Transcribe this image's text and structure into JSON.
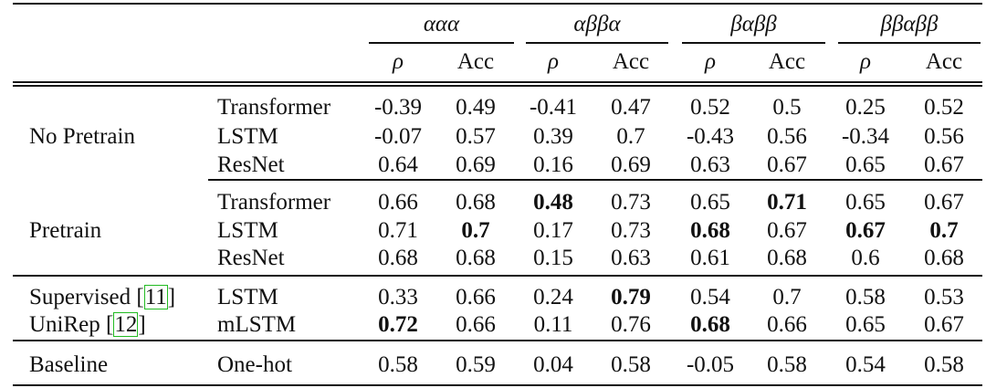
{
  "groups": [
    {
      "label": "ααα"
    },
    {
      "label": "αββα"
    },
    {
      "label": "βαββ"
    },
    {
      "label": "ββαββ"
    }
  ],
  "subheaders": [
    "ρ",
    "Acc"
  ],
  "sections": [
    {
      "name": "No Pretrain",
      "rows": [
        {
          "model": "Transformer",
          "values": [
            "-0.39",
            "0.49",
            "-0.41",
            "0.47",
            "0.52",
            "0.5",
            "0.25",
            "0.52"
          ],
          "bold": []
        },
        {
          "model": "LSTM",
          "values": [
            "-0.07",
            "0.57",
            "0.39",
            "0.7",
            "-0.43",
            "0.56",
            "-0.34",
            "0.56"
          ],
          "bold": []
        },
        {
          "model": "ResNet",
          "values": [
            "0.64",
            "0.69",
            "0.16",
            "0.69",
            "0.63",
            "0.67",
            "0.65",
            "0.67"
          ],
          "bold": []
        }
      ]
    },
    {
      "name": "Pretrain",
      "rows": [
        {
          "model": "Transformer",
          "values": [
            "0.66",
            "0.68",
            "0.48",
            "0.73",
            "0.65",
            "0.71",
            "0.65",
            "0.67"
          ],
          "bold": [
            2,
            5
          ]
        },
        {
          "model": "LSTM",
          "values": [
            "0.71",
            "0.7",
            "0.17",
            "0.73",
            "0.68",
            "0.67",
            "0.67",
            "0.7"
          ],
          "bold": [
            1,
            4,
            6,
            7
          ]
        },
        {
          "model": "ResNet",
          "values": [
            "0.68",
            "0.68",
            "0.15",
            "0.63",
            "0.61",
            "0.68",
            "0.6",
            "0.68"
          ],
          "bold": []
        }
      ]
    },
    {
      "name": "",
      "rows": [
        {
          "label": "Supervised",
          "ref": "11",
          "model": "LSTM",
          "values": [
            "0.33",
            "0.66",
            "0.24",
            "0.79",
            "0.54",
            "0.7",
            "0.58",
            "0.53"
          ],
          "bold": [
            3
          ]
        },
        {
          "label": "UniRep",
          "ref": "12",
          "model": "mLSTM",
          "values": [
            "0.72",
            "0.66",
            "0.11",
            "0.76",
            "0.68",
            "0.66",
            "0.65",
            "0.67"
          ],
          "bold": [
            0,
            4
          ]
        }
      ]
    },
    {
      "name": "Baseline",
      "rows": [
        {
          "model": "One-hot",
          "values": [
            "0.58",
            "0.59",
            "0.04",
            "0.58",
            "-0.05",
            "0.58",
            "0.54",
            "0.58"
          ],
          "bold": []
        }
      ]
    }
  ]
}
